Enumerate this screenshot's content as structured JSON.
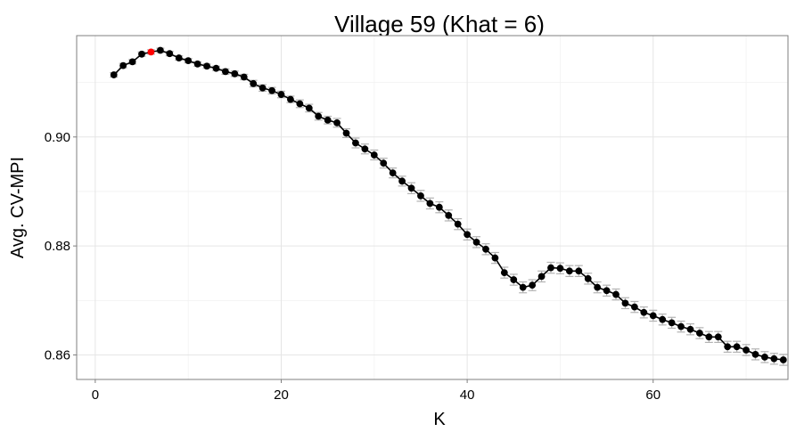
{
  "chart_data": {
    "type": "line",
    "title": "Village 59 (Khat = 6)",
    "xlabel": "K",
    "ylabel": "Avg. CV-MPI",
    "xlim": [
      -2,
      74.5
    ],
    "ylim": [
      0.8555,
      0.9186
    ],
    "xticks": [
      0,
      20,
      40,
      60
    ],
    "yticks": [
      0.86,
      0.88,
      0.9
    ],
    "ytick_labels": [
      "0.86",
      "0.88",
      "0.90"
    ],
    "grid": true,
    "highlight_x": 6,
    "colors": {
      "line": "#000000",
      "point": "#000000",
      "highlight": "#ff0000",
      "errorbar": "#b3b3b3",
      "grid_major": "#e5e5e5",
      "grid_minor": "#f2f2f2",
      "frame": "#7f7f7f"
    },
    "series": [
      {
        "x": [
          2,
          3,
          4,
          5,
          6,
          7,
          8,
          9,
          10,
          11,
          12,
          13,
          14,
          15,
          16,
          17,
          18,
          19,
          20,
          21,
          22,
          23,
          24,
          25,
          26,
          27,
          28,
          29,
          30,
          31,
          32,
          33,
          34,
          35,
          36,
          37,
          38,
          39,
          40,
          41,
          42,
          43,
          44,
          45,
          46,
          47,
          48,
          49,
          50,
          51,
          52,
          53,
          54,
          55,
          56,
          57,
          58,
          59,
          60,
          61,
          62,
          63,
          64,
          65,
          66,
          67,
          68,
          69,
          70,
          71,
          72,
          73,
          74
        ],
        "y": [
          0.9114,
          0.9131,
          0.9138,
          0.9152,
          0.9156,
          0.9159,
          0.9153,
          0.9145,
          0.914,
          0.9134,
          0.913,
          0.9126,
          0.912,
          0.9116,
          0.911,
          0.9098,
          0.909,
          0.9085,
          0.9078,
          0.9069,
          0.9061,
          0.9053,
          0.9038,
          0.9031,
          0.9026,
          0.9007,
          0.8989,
          0.8978,
          0.8967,
          0.8952,
          0.8934,
          0.8919,
          0.8906,
          0.8892,
          0.8878,
          0.8871,
          0.8856,
          0.884,
          0.8821,
          0.8807,
          0.8794,
          0.8778,
          0.8751,
          0.8738,
          0.8724,
          0.8728,
          0.8744,
          0.876,
          0.8759,
          0.8754,
          0.8754,
          0.874,
          0.8724,
          0.8718,
          0.8711,
          0.8695,
          0.8688,
          0.8678,
          0.8672,
          0.8665,
          0.8659,
          0.8652,
          0.8647,
          0.864,
          0.8633,
          0.8633,
          0.8615,
          0.8615,
          0.8609,
          0.8601,
          0.8596,
          0.8593,
          0.8591
        ],
        "err": [
          0.0004,
          0.0004,
          0.0004,
          0.0004,
          0.0004,
          0.0004,
          0.0004,
          0.0004,
          0.0004,
          0.0004,
          0.0004,
          0.0004,
          0.0005,
          0.0005,
          0.0005,
          0.0006,
          0.0006,
          0.0006,
          0.0006,
          0.0006,
          0.0007,
          0.0007,
          0.0007,
          0.0007,
          0.0008,
          0.0008,
          0.0009,
          0.0009,
          0.0009,
          0.0009,
          0.0009,
          0.0009,
          0.001,
          0.001,
          0.001,
          0.001,
          0.001,
          0.001,
          0.001,
          0.001,
          0.001,
          0.001,
          0.001,
          0.001,
          0.001,
          0.001,
          0.001,
          0.001,
          0.001,
          0.001,
          0.001,
          0.001,
          0.001,
          0.001,
          0.001,
          0.001,
          0.001,
          0.001,
          0.001,
          0.001,
          0.001,
          0.001,
          0.001,
          0.001,
          0.001,
          0.001,
          0.001,
          0.001,
          0.001,
          0.001,
          0.001,
          0.001,
          0.001
        ]
      }
    ]
  }
}
